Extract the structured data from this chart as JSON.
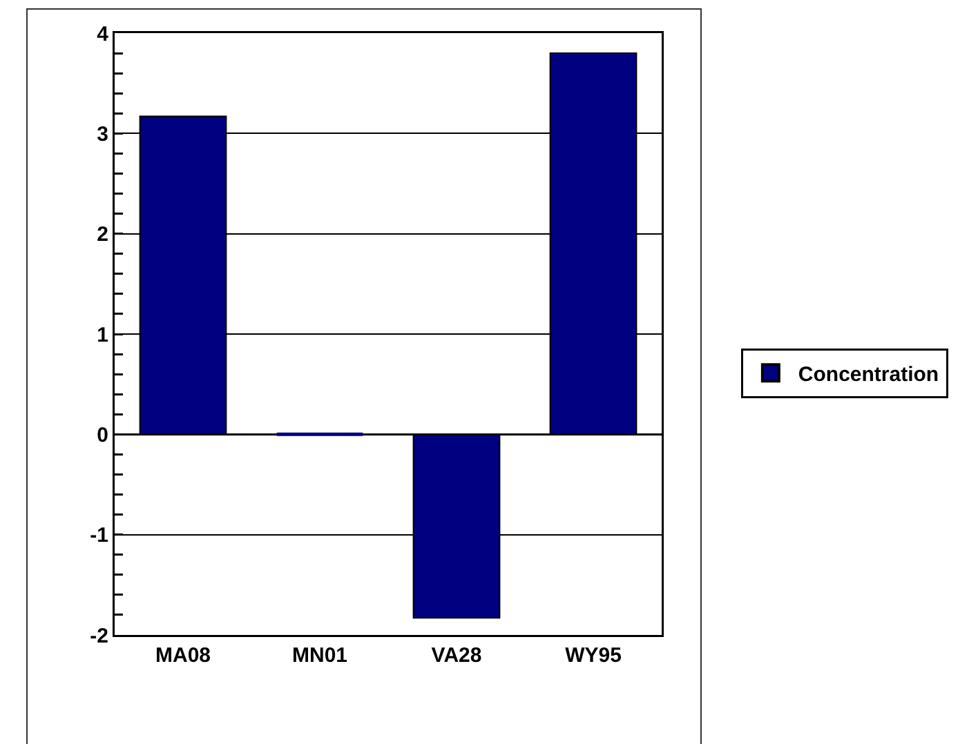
{
  "chart_data": {
    "type": "bar",
    "categories": [
      "MA08",
      "MN01",
      "VA28",
      "WY95"
    ],
    "series": [
      {
        "name": "Concentration",
        "color": "#000080",
        "values": [
          3.17,
          0,
          -1.83,
          3.8
        ]
      }
    ],
    "ylim": [
      -2,
      4
    ],
    "yticks": [
      -2,
      {
        "value": -1.8,
        "label": null
      },
      {
        "value": -1.6,
        "label": null
      },
      {
        "value": -1.4,
        "label": null
      },
      {
        "value": -1.2,
        "label": null
      },
      -1,
      {
        "value": -0.8,
        "label": null
      },
      {
        "value": -0.6,
        "label": null
      },
      {
        "value": -0.4,
        "label": null
      },
      {
        "value": -0.2,
        "label": null
      },
      0,
      {
        "value": 0.2,
        "label": null
      },
      {
        "value": 0.4,
        "label": null
      },
      {
        "value": 0.6,
        "label": null
      },
      {
        "value": 0.8,
        "label": null
      },
      1,
      {
        "value": 1.2,
        "label": null
      },
      {
        "value": 1.4,
        "label": null
      },
      {
        "value": 1.6,
        "label": null
      },
      {
        "value": 1.8,
        "label": null
      },
      2,
      {
        "value": 2.2,
        "label": null
      },
      {
        "value": 2.4,
        "label": null
      },
      {
        "value": 2.6,
        "label": null
      },
      {
        "value": 2.8,
        "label": null
      },
      3,
      {
        "value": 3.2,
        "label": null
      },
      {
        "value": 3.4,
        "label": null
      },
      {
        "value": 3.6,
        "label": null
      },
      {
        "value": 3.8,
        "label": null
      },
      4
    ],
    "grid": "y",
    "legend": "right"
  }
}
